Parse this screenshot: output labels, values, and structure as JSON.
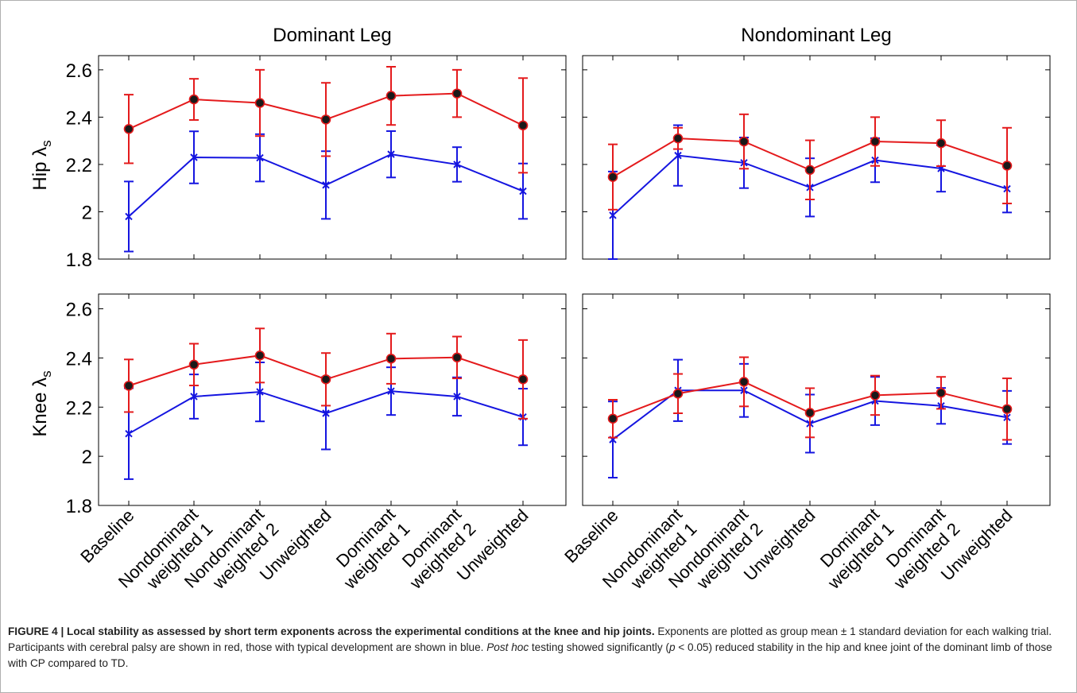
{
  "panels": {
    "left_title": "Dominant Leg",
    "right_title": "Nondominant Leg",
    "top_ylabel_main": "Hip λ",
    "top_ylabel_sub": "s",
    "bottom_ylabel_main": "Knee λ",
    "bottom_ylabel_sub": "s"
  },
  "chart_data": {
    "type": "line",
    "y_ticks": [
      1.8,
      2,
      2.2,
      2.4,
      2.6
    ],
    "y_tick_labels": [
      "1.8",
      "2",
      "2.2",
      "2.4",
      "2.6"
    ],
    "ylim": [
      1.8,
      2.66
    ],
    "x_tick_labels": [
      [
        "Baseline"
      ],
      [
        "Nondominant",
        "weighted 1"
      ],
      [
        "Nondominant",
        "weighted 2"
      ],
      [
        "Unweighted"
      ],
      [
        "Dominant",
        "weighted 1"
      ],
      [
        "Dominant",
        "weighted 2"
      ],
      [
        "Unweighted"
      ]
    ],
    "colors": {
      "cp": "#e41a1c",
      "td": "#1515e0",
      "marker_fill": "#1a1a1a"
    },
    "panels": [
      {
        "id": "hip-dominant",
        "series": [
          {
            "group": "cp",
            "mean": [
              2.35,
              2.475,
              2.46,
              2.39,
              2.49,
              2.5,
              2.365
            ],
            "sd": [
              0.145,
              0.087,
              0.14,
              0.155,
              0.123,
              0.1,
              0.2
            ]
          },
          {
            "group": "td",
            "mean": [
              1.98,
              2.23,
              2.228,
              2.113,
              2.243,
              2.2,
              2.087
            ],
            "sd": [
              0.148,
              0.11,
              0.1,
              0.143,
              0.098,
              0.073,
              0.117
            ]
          }
        ]
      },
      {
        "id": "hip-nondominant",
        "series": [
          {
            "group": "cp",
            "mean": [
              2.147,
              2.31,
              2.297,
              2.177,
              2.297,
              2.29,
              2.195
            ],
            "sd": [
              0.138,
              0.045,
              0.115,
              0.125,
              0.103,
              0.097,
              0.16
            ]
          },
          {
            "group": "td",
            "mean": [
              1.985,
              2.238,
              2.207,
              2.103,
              2.218,
              2.183,
              2.097
            ],
            "sd": [
              0.185,
              0.128,
              0.107,
              0.123,
              0.093,
              0.098,
              0.1
            ]
          }
        ]
      },
      {
        "id": "knee-dominant",
        "series": [
          {
            "group": "cp",
            "mean": [
              2.287,
              2.373,
              2.41,
              2.313,
              2.397,
              2.402,
              2.313
            ],
            "sd": [
              0.107,
              0.085,
              0.11,
              0.107,
              0.102,
              0.085,
              0.16
            ]
          },
          {
            "group": "td",
            "mean": [
              2.092,
              2.243,
              2.262,
              2.175,
              2.265,
              2.243,
              2.16
            ],
            "sd": [
              0.185,
              0.09,
              0.12,
              0.147,
              0.097,
              0.078,
              0.115
            ]
          }
        ]
      },
      {
        "id": "knee-nondominant",
        "series": [
          {
            "group": "cp",
            "mean": [
              2.153,
              2.255,
              2.303,
              2.177,
              2.248,
              2.258,
              2.192
            ],
            "sd": [
              0.077,
              0.08,
              0.1,
              0.1,
              0.08,
              0.065,
              0.125
            ]
          },
          {
            "group": "td",
            "mean": [
              2.068,
              2.268,
              2.268,
              2.133,
              2.225,
              2.205,
              2.158
            ],
            "sd": [
              0.155,
              0.125,
              0.108,
              0.118,
              0.098,
              0.073,
              0.108
            ]
          }
        ]
      }
    ]
  },
  "caption": {
    "lead": "FIGURE 4 | Local stability as assessed by short term exponents across the experimental conditions at the knee and hip joints.",
    "part1": " Exponents are plotted as group mean ± 1 standard deviation for each walking trial. Participants with cerebral palsy are shown in red, those with typical development are shown in blue. ",
    "italic": "Post hoc",
    "part2": " testing showed significantly (",
    "p_symbol": "p",
    "part3": " < 0.05) reduced stability in the hip and knee joint of the dominant limb of those with CP compared to TD."
  }
}
